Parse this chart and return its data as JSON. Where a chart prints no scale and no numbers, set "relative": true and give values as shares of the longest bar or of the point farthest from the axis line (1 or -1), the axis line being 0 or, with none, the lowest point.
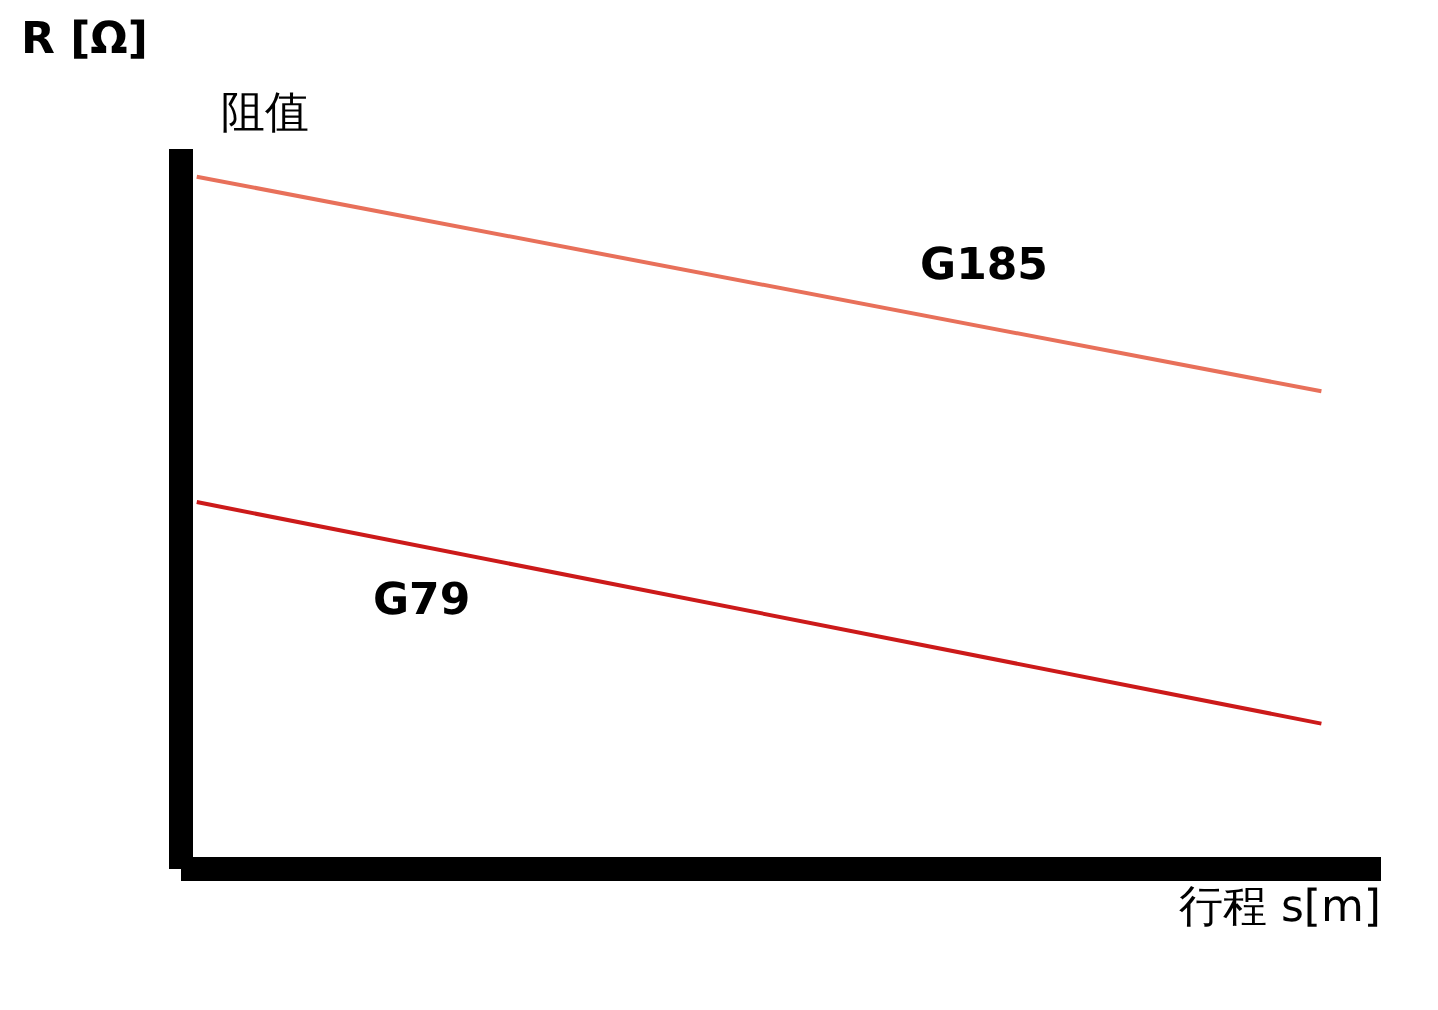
{
  "chart_data": {
    "type": "line",
    "relative": true,
    "ylabel": "R [Ω]",
    "xlabel": "行程 s[m]",
    "annotations": [
      "阻值"
    ],
    "categories": [
      null,
      null
    ],
    "series": [
      {
        "name": "G185",
        "color": "#e8705a",
        "values": [
          1,
          0.69
        ]
      },
      {
        "name": "G79",
        "color": "#cc1a1a",
        "values": [
          0.53,
          0.21
        ]
      }
    ],
    "grid": false,
    "legend": false,
    "marker": "none",
    "line_style": "solid"
  }
}
